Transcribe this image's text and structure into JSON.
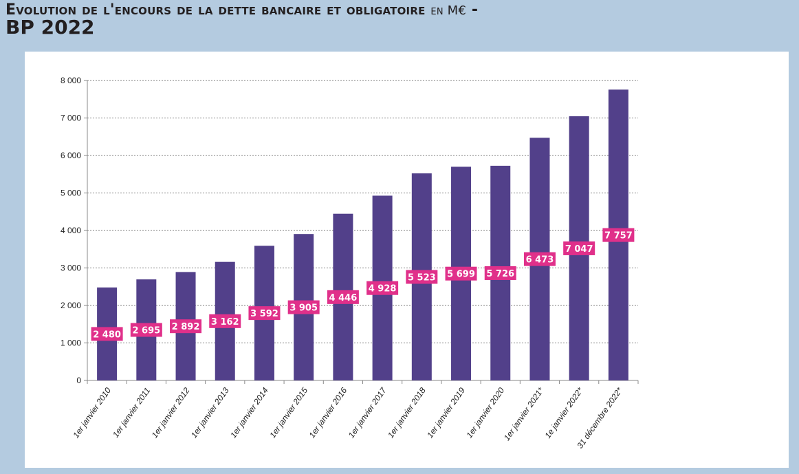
{
  "title": {
    "line1": "Evolution de l'encours de la dette bancaire et obligatoire",
    "unit": "en M€",
    "dash": " -",
    "line2": "BP 2022"
  },
  "chart_data": {
    "type": "bar",
    "categories": [
      "1er janvier 2010",
      "1er janvier 2011",
      "1er janvier 2012",
      "1er janvier 2013",
      "1er janvier 2014",
      "1er janvier 2015",
      "1er janvier 2016",
      "1er janvier 2017",
      "1er janvier 2018",
      "1er janvier 2019",
      "1er janvier 2020",
      "1er janvier 2021*",
      "1e janvier 2022*",
      "31 décembre 2022*"
    ],
    "values": [
      2480,
      2695,
      2892,
      3162,
      3592,
      3905,
      4446,
      4928,
      5523,
      5699,
      5726,
      6473,
      7047,
      7757
    ],
    "data_labels": [
      "2 480",
      "2 695",
      "2 892",
      "3 162",
      "3 592",
      "3 905",
      "4 446",
      "4 928",
      "5 523",
      "5 699",
      "5 726",
      "6 473",
      "7 047",
      "7 757"
    ],
    "yticks": [
      0,
      1000,
      2000,
      3000,
      4000,
      5000,
      6000,
      7000,
      8000
    ],
    "ytick_labels": [
      "0",
      "1 000",
      "2 000",
      "3 000",
      "4 000",
      "5 000",
      "6 000",
      "7 000",
      "8 000"
    ],
    "ylim": [
      0,
      8000
    ],
    "grid": true,
    "colors": {
      "bar": "#52408a",
      "label_bg": "#e0308a",
      "background": "#b4cbe0"
    }
  }
}
